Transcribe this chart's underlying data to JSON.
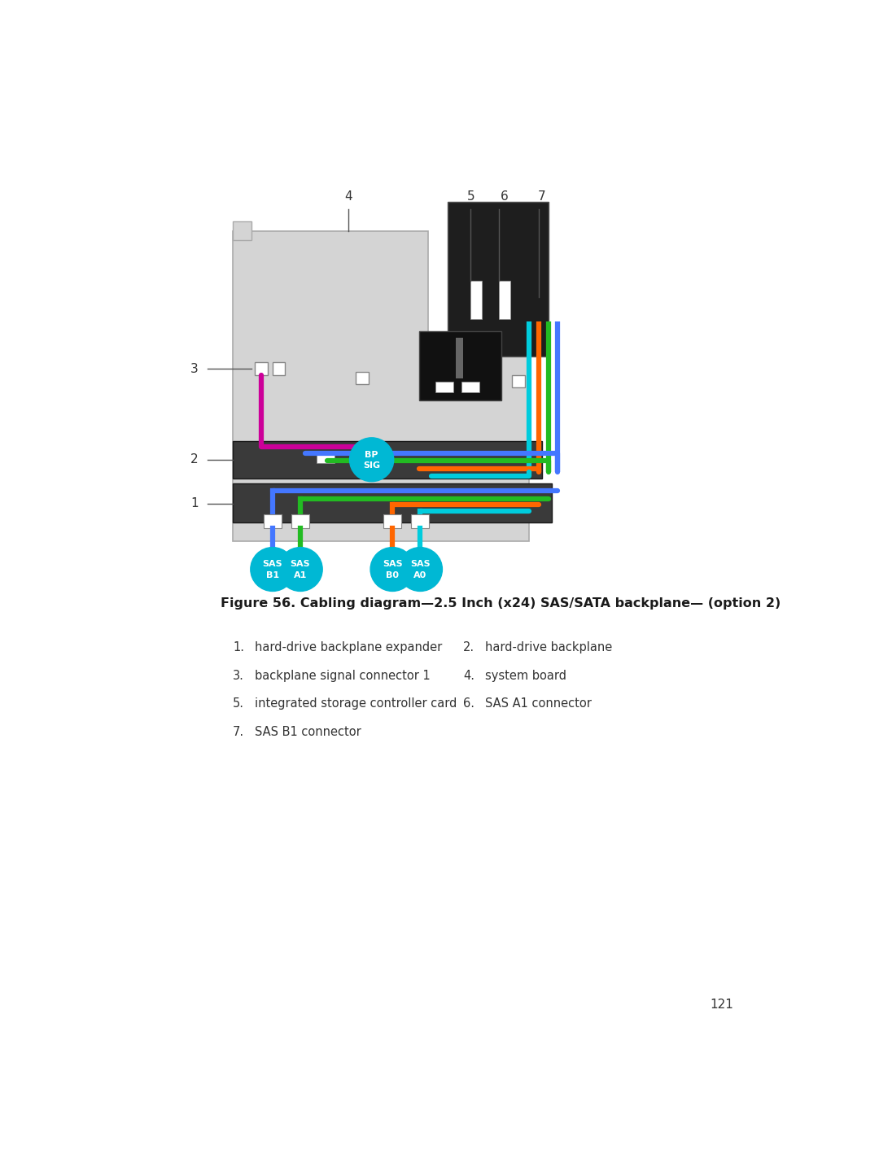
{
  "title": "Figure 56. Cabling diagram—2.5 Inch (x24) SAS/SATA backplane— (option 2)",
  "page_number": "121",
  "legend_items": [
    [
      "1.",
      "hard-drive backplane expander",
      "2.",
      "hard-drive backplane"
    ],
    [
      "3.",
      "backplane signal connector 1",
      "4.",
      "system board"
    ],
    [
      "5.",
      "integrated storage controller card",
      "6.",
      "SAS A1 connector"
    ],
    [
      "7.",
      "SAS B1 connector",
      "",
      ""
    ]
  ],
  "bg_color": "#ffffff",
  "light_gray": "#d4d4d4",
  "dark_gray": "#3a3a3a",
  "cyan_color": "#00b8d4",
  "magenta_color": "#cc0099",
  "cable_blue": "#4477ff",
  "cable_green": "#22bb22",
  "cable_orange": "#ff6600",
  "cable_cyan": "#00ccdd"
}
